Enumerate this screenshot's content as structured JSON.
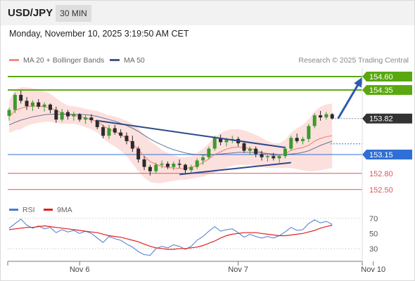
{
  "header": {
    "symbol": "USD/JPY",
    "timeframe": "30 MIN"
  },
  "datetime": "Monday, November 10, 2025 3:19:50 AM CET",
  "attribution": "Research © 2025 Trading Central",
  "legend_main": [
    {
      "label": "MA 20 + Bollinger Bands",
      "color": "#f28b82"
    },
    {
      "label": "MA 50",
      "color": "#3d5a8a"
    }
  ],
  "legend_rsi": [
    {
      "label": "RSI",
      "color": "#4a7bd0"
    },
    {
      "label": "9MA",
      "color": "#e02020"
    }
  ],
  "colors": {
    "up": "#3c9a2f",
    "down": "#2a2a2a",
    "resistance": "#5aa80f",
    "pivot": "#2f6fd6",
    "support": "#e05555",
    "current": "#333333",
    "trendline": "#2e4a8a",
    "band_fill": "#fbd5d2"
  },
  "chart_data": [
    {
      "type": "candlestick",
      "title": "",
      "ylim": [
        152.34,
        154.77
      ],
      "x_tick_labels": [
        "Nov 6",
        "Nov 7",
        "Nov 10"
      ],
      "x_tick_positions": [
        12,
        39,
        62
      ],
      "price_levels": [
        {
          "value": 154.6,
          "label": "154.60",
          "kind": "resistance"
        },
        {
          "value": 154.35,
          "label": "154.35",
          "kind": "resistance"
        },
        {
          "value": 153.82,
          "label": "153.82",
          "kind": "current"
        },
        {
          "value": 153.15,
          "label": "153.15",
          "kind": "pivot"
        },
        {
          "value": 152.8,
          "label": "152.80",
          "kind": "support"
        },
        {
          "value": 152.5,
          "label": "152.50",
          "kind": "support"
        }
      ],
      "candles": [
        [
          153.87,
          154.02,
          153.78,
          153.98
        ],
        [
          153.98,
          154.3,
          153.92,
          154.26
        ],
        [
          154.26,
          154.34,
          154.1,
          154.15
        ],
        [
          154.15,
          154.22,
          153.98,
          154.05
        ],
        [
          154.05,
          154.16,
          153.96,
          154.12
        ],
        [
          154.12,
          154.18,
          154.0,
          154.04
        ],
        [
          154.04,
          154.12,
          153.95,
          154.08
        ],
        [
          154.08,
          154.1,
          153.92,
          153.98
        ],
        [
          153.98,
          154.04,
          153.74,
          153.8
        ],
        [
          153.8,
          154.0,
          153.76,
          153.94
        ],
        [
          153.94,
          153.98,
          153.8,
          153.86
        ],
        [
          153.86,
          153.95,
          153.78,
          153.9
        ],
        [
          153.9,
          153.92,
          153.76,
          153.8
        ],
        [
          153.8,
          153.88,
          153.72,
          153.84
        ],
        [
          153.84,
          153.9,
          153.74,
          153.79
        ],
        [
          153.79,
          153.8,
          153.62,
          153.66
        ],
        [
          153.66,
          153.7,
          153.45,
          153.5
        ],
        [
          153.5,
          153.7,
          153.44,
          153.64
        ],
        [
          153.64,
          153.7,
          153.52,
          153.56
        ],
        [
          153.56,
          153.62,
          153.46,
          153.5
        ],
        [
          153.5,
          153.56,
          153.34,
          153.4
        ],
        [
          153.4,
          153.5,
          153.2,
          153.26
        ],
        [
          153.26,
          153.3,
          153.0,
          153.06
        ],
        [
          153.06,
          153.12,
          152.86,
          152.92
        ],
        [
          152.92,
          152.96,
          152.76,
          152.84
        ],
        [
          152.84,
          153.0,
          152.8,
          152.96
        ],
        [
          152.96,
          153.04,
          152.9,
          152.98
        ],
        [
          152.98,
          153.02,
          152.88,
          152.92
        ],
        [
          152.92,
          153.02,
          152.86,
          152.98
        ],
        [
          152.98,
          153.06,
          152.9,
          152.96
        ],
        [
          152.96,
          152.98,
          152.8,
          152.86
        ],
        [
          152.86,
          152.96,
          152.8,
          152.92
        ],
        [
          152.92,
          153.08,
          152.88,
          153.04
        ],
        [
          153.04,
          153.14,
          152.96,
          153.1
        ],
        [
          153.1,
          153.3,
          153.06,
          153.26
        ],
        [
          153.26,
          153.5,
          153.22,
          153.46
        ],
        [
          153.46,
          153.52,
          153.32,
          153.38
        ],
        [
          153.38,
          153.46,
          153.3,
          153.42
        ],
        [
          153.42,
          153.5,
          153.36,
          153.44
        ],
        [
          153.44,
          153.48,
          153.3,
          153.36
        ],
        [
          153.36,
          153.4,
          153.18,
          153.22
        ],
        [
          153.22,
          153.3,
          153.14,
          153.26
        ],
        [
          153.26,
          153.3,
          153.1,
          153.16
        ],
        [
          153.16,
          153.22,
          153.04,
          153.1
        ],
        [
          153.1,
          153.16,
          153.02,
          153.12
        ],
        [
          153.12,
          153.18,
          153.04,
          153.08
        ],
        [
          153.08,
          153.14,
          153.0,
          153.12
        ],
        [
          153.12,
          153.3,
          153.08,
          153.26
        ],
        [
          153.26,
          153.5,
          153.22,
          153.46
        ],
        [
          153.46,
          153.54,
          153.36,
          153.4
        ],
        [
          153.4,
          153.48,
          153.34,
          153.44
        ],
        [
          153.44,
          153.72,
          153.38,
          153.68
        ],
        [
          153.68,
          153.92,
          153.64,
          153.88
        ],
        [
          153.88,
          153.96,
          153.78,
          153.84
        ],
        [
          153.84,
          153.94,
          153.8,
          153.9
        ],
        [
          153.9,
          153.92,
          153.8,
          153.82
        ]
      ],
      "bollinger_upper": [
        154.15,
        154.35,
        154.4,
        154.4,
        154.38,
        154.36,
        154.32,
        154.28,
        154.2,
        154.12,
        154.06,
        154.05,
        154.03,
        154.0,
        153.98,
        153.96,
        153.92,
        153.88,
        153.86,
        153.82,
        153.78,
        153.72,
        153.64,
        153.52,
        153.4,
        153.32,
        153.24,
        153.18,
        153.14,
        153.1,
        153.1,
        153.12,
        153.18,
        153.26,
        153.36,
        153.48,
        153.55,
        153.6,
        153.62,
        153.62,
        153.6,
        153.56,
        153.52,
        153.46,
        153.4,
        153.36,
        153.36,
        153.42,
        153.56,
        153.64,
        153.7,
        153.8,
        153.95,
        154.04,
        154.08,
        154.1
      ],
      "bollinger_lower": [
        153.55,
        153.6,
        153.62,
        153.68,
        153.72,
        153.74,
        153.76,
        153.76,
        153.74,
        153.72,
        153.72,
        153.72,
        153.7,
        153.66,
        153.62,
        153.56,
        153.46,
        153.36,
        153.3,
        153.22,
        153.12,
        152.98,
        152.84,
        152.72,
        152.64,
        152.62,
        152.62,
        152.64,
        152.66,
        152.68,
        152.68,
        152.7,
        152.72,
        152.74,
        152.78,
        152.82,
        152.86,
        152.9,
        152.94,
        152.96,
        152.96,
        152.96,
        152.94,
        152.92,
        152.9,
        152.9,
        152.9,
        152.9,
        152.9,
        152.88,
        152.86,
        152.84,
        152.84,
        152.86,
        152.88,
        152.9
      ],
      "ma20": [
        153.85,
        153.97,
        154.01,
        154.04,
        154.05,
        154.05,
        154.04,
        154.02,
        153.97,
        153.92,
        153.89,
        153.88,
        153.86,
        153.83,
        153.8,
        153.76,
        153.69,
        153.62,
        153.58,
        153.52,
        153.45,
        153.35,
        153.24,
        153.12,
        153.02,
        152.97,
        152.93,
        152.91,
        152.9,
        152.89,
        152.89,
        152.91,
        152.95,
        153.0,
        153.07,
        153.15,
        153.2,
        153.25,
        153.28,
        153.29,
        153.28,
        153.26,
        153.23,
        153.19,
        153.15,
        153.13,
        153.13,
        153.16,
        153.23,
        153.26,
        153.28,
        153.32,
        153.4,
        153.45,
        153.48,
        153.5
      ],
      "ma50": [
        153.7,
        153.75,
        153.79,
        153.82,
        153.85,
        153.87,
        153.89,
        153.9,
        153.9,
        153.9,
        153.9,
        153.9,
        153.9,
        153.89,
        153.88,
        153.86,
        153.83,
        153.8,
        153.77,
        153.73,
        153.69,
        153.64,
        153.58,
        153.51,
        153.44,
        153.38,
        153.33,
        153.28,
        153.24,
        153.21,
        153.18,
        153.16,
        153.15,
        153.14,
        153.14,
        153.15,
        153.16,
        153.17,
        153.18,
        153.19,
        153.19,
        153.19,
        153.19,
        153.18,
        153.17,
        153.16,
        153.15,
        153.15,
        153.16,
        153.17,
        153.19,
        153.22,
        153.27,
        153.32,
        153.36,
        153.4
      ],
      "upper_trendline": [
        [
          15,
          153.78
        ],
        [
          47,
          153.28
        ]
      ],
      "lower_trendline": [
        [
          29,
          152.78
        ],
        [
          48,
          153.0
        ]
      ],
      "projection": [
        [
          56,
          153.82
        ],
        [
          60,
          154.56
        ]
      ]
    },
    {
      "type": "line",
      "title": "RSI",
      "ylim": [
        15,
        80
      ],
      "y_ticks": [
        30,
        50,
        70
      ],
      "rsi": [
        57,
        63,
        69,
        61,
        57,
        60,
        56,
        58,
        51,
        55,
        52,
        54,
        50,
        53,
        50,
        44,
        38,
        46,
        43,
        41,
        36,
        32,
        26,
        22,
        21,
        30,
        33,
        31,
        35,
        33,
        29,
        33,
        41,
        46,
        53,
        59,
        53,
        55,
        56,
        51,
        45,
        49,
        46,
        44,
        46,
        44,
        47,
        52,
        58,
        54,
        55,
        63,
        68,
        64,
        66,
        62
      ],
      "ma9": [
        55,
        56,
        57,
        58,
        58,
        59,
        60,
        59,
        58,
        57,
        56,
        55,
        54,
        53,
        52,
        51,
        49,
        47,
        46,
        45,
        43,
        41,
        39,
        36,
        33,
        31,
        30,
        29,
        29,
        30,
        30,
        31,
        32,
        34,
        37,
        40,
        44,
        47,
        49,
        50,
        51,
        51,
        51,
        50,
        49,
        48,
        47,
        47,
        48,
        49,
        50,
        52,
        54,
        57,
        59,
        61
      ]
    }
  ]
}
